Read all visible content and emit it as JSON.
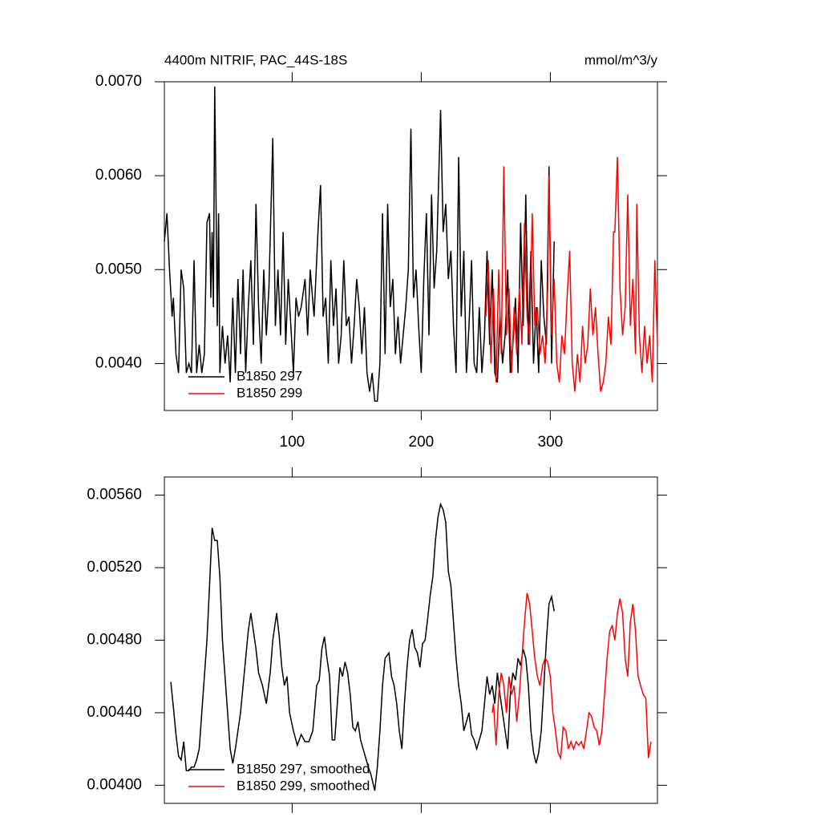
{
  "chart_data": [
    {
      "type": "line",
      "title": "4400m NITRIF, PAC_44S-18S",
      "units_label": "mmol/m^3/y",
      "xlim": [
        1,
        383
      ],
      "ylim": [
        0.0035,
        0.007
      ],
      "xticks": [
        100,
        200,
        300
      ],
      "xtick_labels": true,
      "yticks": [
        {
          "value": 0.007,
          "label": "0.0070"
        },
        {
          "value": 0.006,
          "label": "0.0060"
        },
        {
          "value": 0.005,
          "label": "0.0050"
        },
        {
          "value": 0.004,
          "label": "0.0040"
        }
      ],
      "legend": "lower left",
      "series": [
        {
          "name": "B1850 297",
          "color": "#000000",
          "x": [
            1,
            3,
            5,
            7,
            8,
            10,
            12,
            14,
            16,
            18,
            20,
            22,
            24,
            26,
            28,
            30,
            32,
            34,
            36,
            37,
            38,
            39,
            40,
            41,
            42,
            43,
            44,
            46,
            48,
            50,
            52,
            54,
            56,
            58,
            60,
            62,
            64,
            66,
            68,
            70,
            72,
            74,
            76,
            78,
            80,
            82,
            85,
            87,
            89,
            91,
            93,
            95,
            97,
            99,
            101,
            103,
            105,
            107,
            110,
            112,
            114,
            117,
            120,
            122,
            124,
            126,
            128,
            130,
            132,
            134,
            136,
            138,
            140,
            142,
            144,
            146,
            148,
            150,
            152,
            154,
            156,
            158,
            160,
            162,
            164,
            166,
            168,
            170,
            172,
            174,
            176,
            178,
            180,
            182,
            184,
            186,
            188,
            190,
            192,
            194,
            196,
            198,
            200,
            202,
            204,
            206,
            208,
            210,
            212,
            215,
            217,
            219,
            221,
            223,
            225,
            227,
            229,
            231,
            233,
            235,
            237,
            239,
            241,
            243,
            245,
            247,
            249,
            251,
            253,
            255,
            257,
            259,
            261,
            263,
            265,
            267,
            269,
            271,
            273,
            275,
            277,
            279,
            281,
            283,
            285,
            287,
            289,
            291,
            293,
            295,
            297,
            299,
            301,
            303
          ],
          "values": [
            0.0053,
            0.0056,
            0.005,
            0.0045,
            0.0047,
            0.0041,
            0.0039,
            0.005,
            0.0048,
            0.0039,
            0.004,
            0.0039,
            0.0051,
            0.0039,
            0.0042,
            0.0039,
            0.0041,
            0.0055,
            0.0056,
            0.0047,
            0.0054,
            0.0046,
            0.00695,
            0.0058,
            0.0044,
            0.0056,
            0.0039,
            0.0044,
            0.004,
            0.0043,
            0.0038,
            0.0047,
            0.0039,
            0.0049,
            0.0041,
            0.005,
            0.0039,
            0.0046,
            0.0051,
            0.0042,
            0.0057,
            0.0046,
            0.004,
            0.005,
            0.0043,
            0.0048,
            0.0064,
            0.0044,
            0.005,
            0.0043,
            0.0054,
            0.0042,
            0.0049,
            0.0044,
            0.0039,
            0.0047,
            0.0045,
            0.0046,
            0.0049,
            0.0043,
            0.005,
            0.0045,
            0.0054,
            0.0059,
            0.0045,
            0.0047,
            0.004,
            0.0051,
            0.0044,
            0.0048,
            0.004,
            0.0043,
            0.0051,
            0.0044,
            0.0045,
            0.004,
            0.0044,
            0.0049,
            0.0046,
            0.0041,
            0.0046,
            0.0039,
            0.0037,
            0.0039,
            0.0036,
            0.0036,
            0.004,
            0.0056,
            0.0041,
            0.0057,
            0.0046,
            0.0049,
            0.0041,
            0.0045,
            0.004,
            0.0043,
            0.0046,
            0.005,
            0.0065,
            0.0047,
            0.005,
            0.0044,
            0.0039,
            0.0049,
            0.0056,
            0.0043,
            0.0058,
            0.0048,
            0.0052,
            0.0067,
            0.0054,
            0.0057,
            0.0049,
            0.0052,
            0.0044,
            0.0039,
            0.0062,
            0.0045,
            0.0052,
            0.0039,
            0.0044,
            0.0051,
            0.004,
            0.0039,
            0.0046,
            0.0039,
            0.0043,
            0.0052,
            0.0042,
            0.005,
            0.0039,
            0.0038,
            0.0045,
            0.004,
            0.0043,
            0.005,
            0.0039,
            0.0042,
            0.0047,
            0.0039,
            0.0055,
            0.0044,
            0.0058,
            0.0042,
            0.0052,
            0.004,
            0.0046,
            0.0039,
            0.0051,
            0.0045,
            0.0042,
            0.0061,
            0.004,
            0.0053
          ]
        },
        {
          "name": "B1850 299",
          "color": "#ff0000",
          "x": [
            250,
            252,
            254,
            256,
            258,
            260,
            262,
            264,
            266,
            268,
            270,
            272,
            274,
            276,
            278,
            280,
            282,
            284,
            286,
            288,
            290,
            292,
            294,
            296,
            298,
            299,
            301,
            303,
            305,
            307,
            309,
            311,
            313,
            315,
            317,
            319,
            321,
            323,
            325,
            327,
            329,
            331,
            333,
            335,
            337,
            339,
            341,
            343,
            345,
            347,
            349,
            350,
            352,
            354,
            356,
            358,
            360,
            362,
            364,
            366,
            367,
            369,
            371,
            373,
            375,
            377,
            379,
            381,
            383
          ],
          "values": [
            0.0045,
            0.0051,
            0.004,
            0.0048,
            0.0038,
            0.005,
            0.0041,
            0.0061,
            0.0043,
            0.0048,
            0.0039,
            0.0046,
            0.0041,
            0.0048,
            0.0042,
            0.0055,
            0.0045,
            0.0042,
            0.0056,
            0.0044,
            0.0046,
            0.0041,
            0.0043,
            0.004,
            0.0048,
            0.006,
            0.0043,
            0.0049,
            0.004,
            0.0038,
            0.0043,
            0.0041,
            0.0047,
            0.0052,
            0.004,
            0.0037,
            0.0041,
            0.0038,
            0.0044,
            0.004,
            0.0042,
            0.0048,
            0.0043,
            0.0046,
            0.0041,
            0.0037,
            0.0038,
            0.004,
            0.0045,
            0.0042,
            0.0054,
            0.0054,
            0.0062,
            0.0048,
            0.0043,
            0.0046,
            0.0058,
            0.0044,
            0.0049,
            0.0041,
            0.0057,
            0.0043,
            0.0039,
            0.0044,
            0.004,
            0.0043,
            0.0038,
            0.0051,
            0.0042
          ]
        }
      ]
    },
    {
      "type": "line",
      "xlim": [
        1,
        383
      ],
      "ylim": [
        0.0039,
        0.0057
      ],
      "xticks": [
        100,
        200,
        300
      ],
      "xtick_labels": false,
      "yticks": [
        {
          "value": 0.0056,
          "label": "0.00560"
        },
        {
          "value": 0.0052,
          "label": "0.00520"
        },
        {
          "value": 0.0048,
          "label": "0.00480"
        },
        {
          "value": 0.0044,
          "label": "0.00440"
        },
        {
          "value": 0.004,
          "label": "0.00400"
        }
      ],
      "legend": "lower left",
      "series": [
        {
          "name": "B1850 297, smoothed",
          "color": "#000000",
          "x": [
            6,
            8,
            10,
            12,
            14,
            16,
            18,
            20,
            22,
            24,
            26,
            28,
            30,
            32,
            34,
            36,
            38,
            40,
            42,
            44,
            46,
            48,
            50,
            52,
            54,
            56,
            58,
            60,
            62,
            64,
            66,
            68,
            70,
            72,
            74,
            77,
            80,
            83,
            85,
            88,
            90,
            92,
            94,
            96,
            98,
            101,
            104,
            107,
            110,
            113,
            116,
            119,
            121,
            123,
            125,
            127,
            129,
            131,
            133,
            135,
            137,
            139,
            141,
            143,
            145,
            147,
            149,
            151,
            153,
            155,
            157,
            159,
            161,
            164,
            166,
            168,
            170,
            172,
            175,
            177,
            179,
            181,
            183,
            185,
            187,
            189,
            191,
            193,
            195,
            197,
            199,
            201,
            203,
            205,
            207,
            209,
            211,
            213,
            215,
            217,
            219,
            221,
            223,
            225,
            227,
            229,
            231,
            233,
            235,
            237,
            239,
            241,
            243,
            245,
            247,
            249,
            251,
            253,
            255,
            257,
            259,
            261,
            263,
            265,
            267,
            269,
            271,
            273,
            275,
            277,
            279,
            281,
            283,
            285,
            287,
            289,
            291,
            293,
            295,
            297,
            299,
            301,
            303
          ],
          "values": [
            0.00457,
            0.00443,
            0.00428,
            0.00416,
            0.00414,
            0.00424,
            0.00408,
            0.00408,
            0.0041,
            0.0041,
            0.00414,
            0.0042,
            0.0044,
            0.0046,
            0.0048,
            0.0051,
            0.00542,
            0.00535,
            0.00535,
            0.00515,
            0.0048,
            0.0046,
            0.0044,
            0.0042,
            0.00412,
            0.0042,
            0.0043,
            0.0044,
            0.00455,
            0.0047,
            0.00485,
            0.00495,
            0.00485,
            0.00475,
            0.00462,
            0.00455,
            0.00445,
            0.00462,
            0.0048,
            0.00495,
            0.00482,
            0.00465,
            0.00455,
            0.0046,
            0.0044,
            0.0043,
            0.00422,
            0.00428,
            0.00424,
            0.00424,
            0.0043,
            0.00455,
            0.00458,
            0.00475,
            0.00482,
            0.0047,
            0.0046,
            0.00425,
            0.00425,
            0.00445,
            0.00465,
            0.0046,
            0.00468,
            0.00462,
            0.0045,
            0.00432,
            0.0043,
            0.00435,
            0.00425,
            0.0042,
            0.00415,
            0.0041,
            0.00406,
            0.00397,
            0.0041,
            0.0043,
            0.00455,
            0.0047,
            0.00473,
            0.0046,
            0.00455,
            0.00445,
            0.0043,
            0.0042,
            0.00445,
            0.00465,
            0.0048,
            0.00486,
            0.00476,
            0.00473,
            0.00465,
            0.00478,
            0.0048,
            0.00492,
            0.00505,
            0.00515,
            0.00535,
            0.00548,
            0.00555,
            0.00552,
            0.00545,
            0.00518,
            0.0051,
            0.0049,
            0.0047,
            0.00455,
            0.00445,
            0.0043,
            0.00435,
            0.0044,
            0.00428,
            0.00425,
            0.0042,
            0.00425,
            0.0043,
            0.00445,
            0.0046,
            0.0045,
            0.00455,
            0.00445,
            0.00462,
            0.0045,
            0.0044,
            0.0043,
            0.0042,
            0.0045,
            0.00462,
            0.00458,
            0.0047,
            0.00466,
            0.00475,
            0.0047,
            0.00455,
            0.0043,
            0.00418,
            0.00412,
            0.00418,
            0.0043,
            0.00455,
            0.0048,
            0.005,
            0.00504,
            0.00496
          ]
        },
        {
          "name": "B1850 299, smoothed",
          "color": "#ff0000",
          "x": [
            255,
            256,
            258,
            260,
            262,
            264,
            266,
            268,
            270,
            272,
            274,
            276,
            278,
            280,
            282,
            284,
            286,
            288,
            290,
            292,
            294,
            296,
            298,
            300,
            302,
            304,
            306,
            308,
            310,
            312,
            314,
            316,
            318,
            320,
            322,
            324,
            326,
            328,
            330,
            332,
            334,
            336,
            338,
            340,
            342,
            344,
            346,
            348,
            350,
            352,
            354,
            356,
            358,
            360,
            362,
            364,
            366,
            368,
            370,
            372,
            374,
            376,
            378
          ],
          "values": [
            0.0044,
            0.00445,
            0.00422,
            0.0045,
            0.00462,
            0.00455,
            0.0044,
            0.0046,
            0.0045,
            0.00455,
            0.00435,
            0.0045,
            0.0047,
            0.0049,
            0.00506,
            0.005,
            0.00485,
            0.0047,
            0.0046,
            0.00455,
            0.00466,
            0.0047,
            0.00468,
            0.0046,
            0.0044,
            0.0043,
            0.00418,
            0.00415,
            0.00432,
            0.0043,
            0.0042,
            0.00424,
            0.0042,
            0.00424,
            0.00422,
            0.00424,
            0.0042,
            0.0043,
            0.0044,
            0.00438,
            0.00432,
            0.0043,
            0.00422,
            0.0043,
            0.0045,
            0.0047,
            0.00485,
            0.00488,
            0.0048,
            0.00495,
            0.00503,
            0.00495,
            0.0047,
            0.0046,
            0.0049,
            0.005,
            0.00485,
            0.0046,
            0.00455,
            0.0045,
            0.00448,
            0.00415,
            0.00424
          ]
        }
      ]
    }
  ]
}
